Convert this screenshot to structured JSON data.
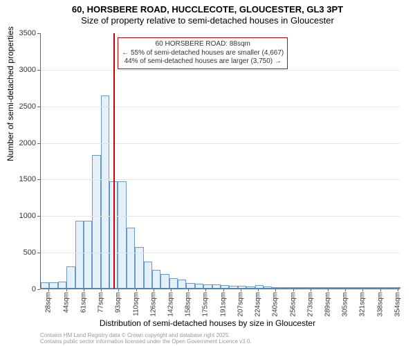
{
  "title": {
    "line1": "60, HORSBERE ROAD, HUCCLECOTE, GLOUCESTER, GL3 3PT",
    "line2": "Size of property relative to semi-detached houses in Gloucester"
  },
  "ylabel": "Number of semi-detached properties",
  "xlabel": "Distribution of semi-detached houses by size in Gloucester",
  "footer": {
    "line1": "Contains HM Land Registry data © Crown copyright and database right 2025.",
    "line2": "Contains public sector information licensed under the Open Government Licence v3.0."
  },
  "annotation": {
    "line1": "60 HORSBERE ROAD: 88sqm",
    "line2": "← 55% of semi-detached houses are smaller (4,667)",
    "line3": "44% of semi-detached houses are larger (3,750) →",
    "marker_x": 88
  },
  "chart": {
    "type": "histogram",
    "background_color": "#ffffff",
    "grid_color": "#e6e6e6",
    "bar_fill": "#e6f0fa",
    "bar_border": "#6699cc",
    "marker_color": "#cc0000",
    "ylim": [
      0,
      3500
    ],
    "ytick_step": 500,
    "x_start": 20,
    "x_step": 8,
    "n_bars": 42,
    "xtick_start": 28,
    "xtick_step": 16.3,
    "xtick_count": 21,
    "xtick_unit": "sqm",
    "values": [
      90,
      90,
      95,
      300,
      930,
      930,
      1830,
      2640,
      1470,
      1470,
      830,
      570,
      370,
      260,
      200,
      140,
      120,
      80,
      70,
      60,
      55,
      45,
      40,
      35,
      30,
      50,
      25,
      20,
      18,
      15,
      12,
      10,
      10,
      8,
      8,
      6,
      6,
      5,
      5,
      4,
      4,
      3
    ],
    "title_fontsize": 13,
    "label_fontsize": 12,
    "tick_fontsize": 11
  }
}
